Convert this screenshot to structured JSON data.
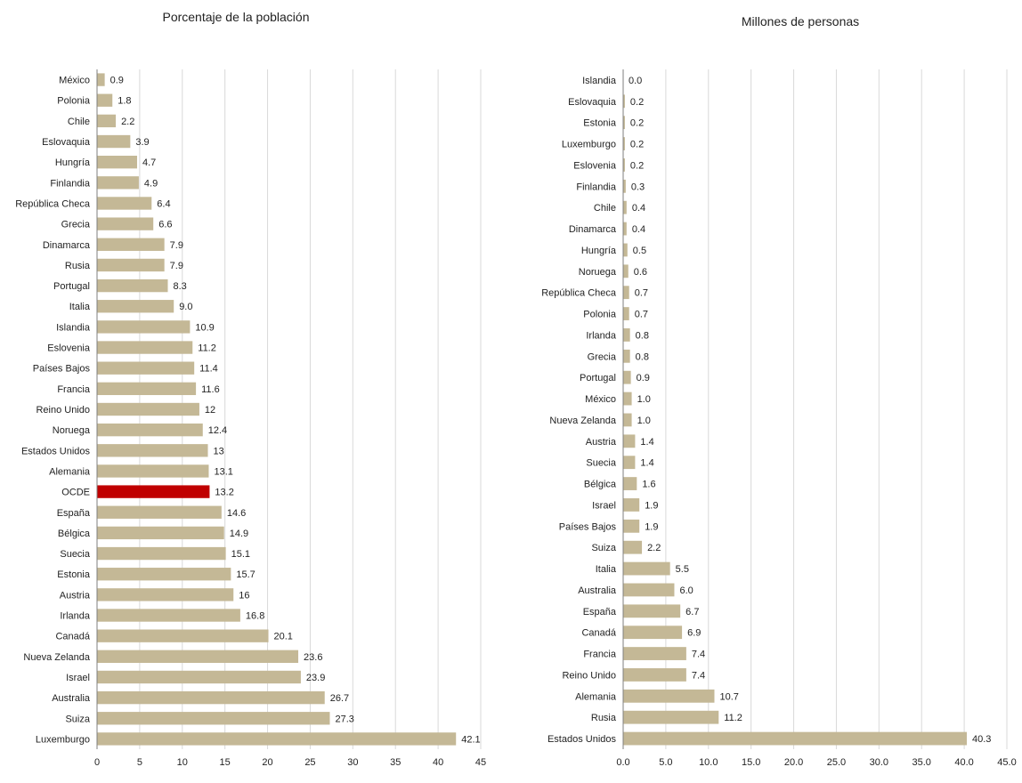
{
  "chart_data": [
    {
      "type": "bar",
      "orientation": "horizontal",
      "title": "Porcentaje de la población",
      "xlabel": "",
      "ylabel": "",
      "xlim": [
        0,
        45
      ],
      "ticks": [
        "0",
        "5",
        "10",
        "15",
        "20",
        "25",
        "30",
        "35",
        "40",
        "45"
      ],
      "grid": true,
      "categories": [
        "México",
        "Polonia",
        "Chile",
        "Eslovaquia",
        "Hungría",
        "Finlandia",
        "República Checa",
        "Grecia",
        "Dinamarca",
        "Rusia",
        "Portugal",
        "Italia",
        "Islandia",
        "Eslovenia",
        "Países Bajos",
        "Francia",
        "Reino Unido",
        "Noruega",
        "Estados Unidos",
        "Alemania",
        "OCDE",
        "España",
        "Bélgica",
        "Suecia",
        "Estonia",
        "Austria",
        "Irlanda",
        "Canadá",
        "Nueva Zelanda",
        "Israel",
        "Australia",
        "Suiza",
        "Luxemburgo"
      ],
      "values": [
        0.9,
        1.8,
        2.2,
        3.9,
        4.7,
        4.9,
        6.4,
        6.6,
        7.9,
        7.9,
        8.3,
        9.0,
        10.9,
        11.2,
        11.4,
        11.6,
        12,
        12.4,
        13,
        13.1,
        13.2,
        14.6,
        14.9,
        15.1,
        15.7,
        16,
        16.8,
        20.1,
        23.6,
        23.9,
        26.7,
        27.3,
        42.1
      ],
      "value_labels": [
        "0.9",
        "1.8",
        "2.2",
        "3.9",
        "4.7",
        "4.9",
        "6.4",
        "6.6",
        "7.9",
        "7.9",
        "8.3",
        "9.0",
        "10.9",
        "11.2",
        "11.4",
        "11.6",
        "12",
        "12.4",
        "13",
        "13.1",
        "13.2",
        "14.6",
        "14.9",
        "15.1",
        "15.7",
        "16",
        "16.8",
        "20.1",
        "23.6",
        "23.9",
        "26.7",
        "27.3",
        "42.1"
      ],
      "highlight": "OCDE",
      "colors": {
        "bar": "#c4b896",
        "highlight": "#c00000",
        "grid": "#d9d9d9",
        "axis": "#7f7f7f"
      }
    },
    {
      "type": "bar",
      "orientation": "horizontal",
      "title": "Millones de personas",
      "xlabel": "",
      "ylabel": "",
      "xlim": [
        0,
        45
      ],
      "ticks": [
        "0.0",
        "5.0",
        "10.0",
        "15.0",
        "20.0",
        "25.0",
        "30.0",
        "35.0",
        "40.0",
        "45.0"
      ],
      "grid": true,
      "categories": [
        "Islandia",
        "Eslovaquia",
        "Estonia",
        "Luxemburgo",
        "Eslovenia",
        "Finlandia",
        "Chile",
        "Dinamarca",
        "Hungría",
        "Noruega",
        "República Checa",
        "Polonia",
        "Irlanda",
        "Grecia",
        "Portugal",
        "México",
        "Nueva Zelanda",
        "Austria",
        "Suecia",
        "Bélgica",
        "Israel",
        "Países Bajos",
        "Suiza",
        "Italia",
        "Australia",
        "España",
        "Canadá",
        "Francia",
        "Reino Unido",
        "Alemania",
        "Rusia",
        "Estados Unidos"
      ],
      "values": [
        0.0,
        0.2,
        0.2,
        0.2,
        0.2,
        0.3,
        0.4,
        0.4,
        0.5,
        0.6,
        0.7,
        0.7,
        0.8,
        0.8,
        0.9,
        1.0,
        1.0,
        1.4,
        1.4,
        1.6,
        1.9,
        1.9,
        2.2,
        5.5,
        6.0,
        6.7,
        6.9,
        7.4,
        7.4,
        10.7,
        11.2,
        40.3
      ],
      "value_labels": [
        "0.0",
        "0.2",
        "0.2",
        "0.2",
        "0.2",
        "0.3",
        "0.4",
        "0.4",
        "0.5",
        "0.6",
        "0.7",
        "0.7",
        "0.8",
        "0.8",
        "0.9",
        "1.0",
        "1.0",
        "1.4",
        "1.4",
        "1.6",
        "1.9",
        "1.9",
        "2.2",
        "5.5",
        "6.0",
        "6.7",
        "6.9",
        "7.4",
        "7.4",
        "10.7",
        "11.2",
        "40.3"
      ],
      "highlight": null,
      "colors": {
        "bar": "#c4b896",
        "highlight": "#c00000",
        "grid": "#d9d9d9",
        "axis": "#7f7f7f"
      }
    }
  ]
}
